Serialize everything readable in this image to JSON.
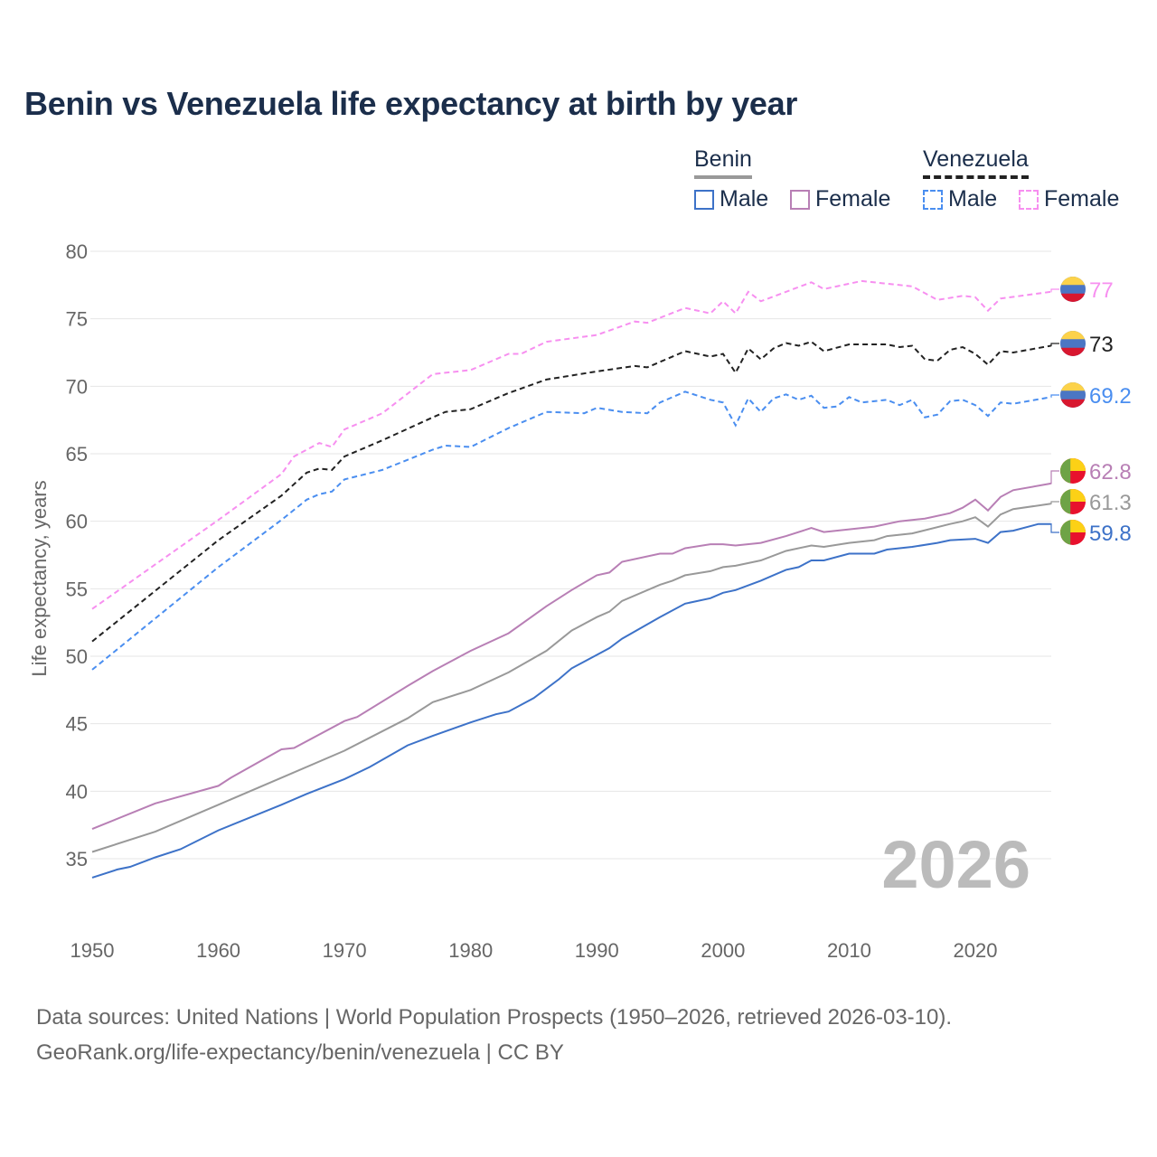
{
  "title": "Benin vs Venezuela life expectancy at birth by year",
  "legend": {
    "groups": [
      {
        "country": "Benin",
        "items": [
          "Male",
          "Female"
        ]
      },
      {
        "country": "Venezuela",
        "items": [
          "Male",
          "Female"
        ]
      }
    ]
  },
  "source": {
    "line1": "Data sources: United Nations | World Population Prospects (1950–2026, retrieved 2026-03-10).",
    "line2": "GeoRank.org/life-expectancy/benin/venezuela | CC BY"
  },
  "chart_data": {
    "type": "line",
    "title": "Benin vs Venezuela life expectancy at birth by year",
    "xlabel": "",
    "ylabel": "Life expectancy, years",
    "xlim": [
      1950,
      2026
    ],
    "ylim": [
      32,
      80
    ],
    "x_ticks": [
      1950,
      1960,
      1970,
      1980,
      1990,
      2000,
      2010,
      2020
    ],
    "y_ticks": [
      35,
      40,
      45,
      50,
      55,
      60,
      65,
      70,
      75,
      80
    ],
    "grid": true,
    "legend_position": "top-right",
    "year_watermark": "2026",
    "series": [
      {
        "name": "Venezuela Female",
        "color": "#f78ff0",
        "dashed": true,
        "end_label": "77",
        "points": [
          [
            1950,
            53.5
          ],
          [
            1960,
            60.1
          ],
          [
            1965,
            63.5
          ],
          [
            1966,
            64.8
          ],
          [
            1968,
            65.8
          ],
          [
            1969,
            65.5
          ],
          [
            1970,
            66.8
          ],
          [
            1973,
            68
          ],
          [
            1977,
            70.9
          ],
          [
            1980,
            71.2
          ],
          [
            1983,
            72.4
          ],
          [
            1984,
            72.4
          ],
          [
            1986,
            73.3
          ],
          [
            1990,
            73.8
          ],
          [
            1993,
            74.8
          ],
          [
            1994,
            74.7
          ],
          [
            1997,
            75.8
          ],
          [
            1999,
            75.4
          ],
          [
            2000,
            76.3
          ],
          [
            2001,
            75.4
          ],
          [
            2002,
            77
          ],
          [
            2003,
            76.3
          ],
          [
            2007,
            77.7
          ],
          [
            2008,
            77.2
          ],
          [
            2011,
            77.8
          ],
          [
            2015,
            77.4
          ],
          [
            2017,
            76.4
          ],
          [
            2019,
            76.7
          ],
          [
            2020,
            76.6
          ],
          [
            2021,
            75.6
          ],
          [
            2022,
            76.5
          ],
          [
            2026,
            77
          ]
        ]
      },
      {
        "name": "Venezuela",
        "color": "#222222",
        "dashed": true,
        "end_label": "73",
        "points": [
          [
            1950,
            51.1
          ],
          [
            1960,
            58.6
          ],
          [
            1965,
            61.9
          ],
          [
            1967,
            63.6
          ],
          [
            1968,
            63.9
          ],
          [
            1969,
            63.8
          ],
          [
            1970,
            64.8
          ],
          [
            1973,
            66
          ],
          [
            1977,
            67.7
          ],
          [
            1978,
            68.1
          ],
          [
            1980,
            68.3
          ],
          [
            1983,
            69.5
          ],
          [
            1986,
            70.5
          ],
          [
            1990,
            71.1
          ],
          [
            1993,
            71.5
          ],
          [
            1994,
            71.4
          ],
          [
            1997,
            72.6
          ],
          [
            1999,
            72.2
          ],
          [
            2000,
            72.4
          ],
          [
            2001,
            71
          ],
          [
            2002,
            72.8
          ],
          [
            2003,
            72
          ],
          [
            2004,
            72.8
          ],
          [
            2005,
            73.2
          ],
          [
            2006,
            73
          ],
          [
            2007,
            73.3
          ],
          [
            2008,
            72.6
          ],
          [
            2010,
            73.1
          ],
          [
            2013,
            73.1
          ],
          [
            2014,
            72.9
          ],
          [
            2015,
            73
          ],
          [
            2016,
            72
          ],
          [
            2017,
            71.9
          ],
          [
            2018,
            72.7
          ],
          [
            2019,
            72.9
          ],
          [
            2020,
            72.4
          ],
          [
            2021,
            71.6
          ],
          [
            2022,
            72.6
          ],
          [
            2023,
            72.5
          ],
          [
            2026,
            73
          ]
        ]
      },
      {
        "name": "Venezuela Male",
        "color": "#4a8ef0",
        "dashed": true,
        "end_label": "69.2",
        "points": [
          [
            1950,
            49
          ],
          [
            1960,
            56.6
          ],
          [
            1965,
            60.1
          ],
          [
            1967,
            61.6
          ],
          [
            1968,
            62
          ],
          [
            1969,
            62.2
          ],
          [
            1970,
            63.1
          ],
          [
            1973,
            63.8
          ],
          [
            1977,
            65.3
          ],
          [
            1978,
            65.6
          ],
          [
            1980,
            65.5
          ],
          [
            1983,
            66.9
          ],
          [
            1986,
            68.1
          ],
          [
            1989,
            68
          ],
          [
            1990,
            68.4
          ],
          [
            1992,
            68.1
          ],
          [
            1994,
            68
          ],
          [
            1995,
            68.8
          ],
          [
            1997,
            69.6
          ],
          [
            1999,
            69
          ],
          [
            2000,
            68.8
          ],
          [
            2001,
            67.1
          ],
          [
            2002,
            69.1
          ],
          [
            2003,
            68.1
          ],
          [
            2004,
            69.1
          ],
          [
            2005,
            69.4
          ],
          [
            2006,
            69
          ],
          [
            2007,
            69.3
          ],
          [
            2008,
            68.4
          ],
          [
            2009,
            68.5
          ],
          [
            2010,
            69.2
          ],
          [
            2011,
            68.8
          ],
          [
            2013,
            69
          ],
          [
            2014,
            68.6
          ],
          [
            2015,
            69
          ],
          [
            2016,
            67.7
          ],
          [
            2017,
            67.9
          ],
          [
            2018,
            68.9
          ],
          [
            2019,
            69
          ],
          [
            2020,
            68.6
          ],
          [
            2021,
            67.8
          ],
          [
            2022,
            68.8
          ],
          [
            2023,
            68.7
          ],
          [
            2026,
            69.2
          ]
        ]
      },
      {
        "name": "Benin Female",
        "color": "#b87fb5",
        "dashed": false,
        "end_label": "62.8",
        "points": [
          [
            1950,
            37.2
          ],
          [
            1955,
            39.1
          ],
          [
            1960,
            40.4
          ],
          [
            1961,
            41
          ],
          [
            1965,
            43.1
          ],
          [
            1966,
            43.2
          ],
          [
            1970,
            45.2
          ],
          [
            1971,
            45.5
          ],
          [
            1975,
            47.8
          ],
          [
            1977,
            48.9
          ],
          [
            1980,
            50.4
          ],
          [
            1983,
            51.7
          ],
          [
            1986,
            53.7
          ],
          [
            1988,
            54.9
          ],
          [
            1990,
            56
          ],
          [
            1991,
            56.2
          ],
          [
            1992,
            57
          ],
          [
            1995,
            57.6
          ],
          [
            1996,
            57.6
          ],
          [
            1997,
            58
          ],
          [
            1999,
            58.3
          ],
          [
            2000,
            58.3
          ],
          [
            2001,
            58.2
          ],
          [
            2003,
            58.4
          ],
          [
            2005,
            58.9
          ],
          [
            2007,
            59.5
          ],
          [
            2008,
            59.2
          ],
          [
            2010,
            59.4
          ],
          [
            2012,
            59.6
          ],
          [
            2014,
            60
          ],
          [
            2016,
            60.2
          ],
          [
            2018,
            60.6
          ],
          [
            2019,
            61
          ],
          [
            2020,
            61.6
          ],
          [
            2021,
            60.8
          ],
          [
            2022,
            61.8
          ],
          [
            2023,
            62.3
          ],
          [
            2026,
            62.8
          ]
        ]
      },
      {
        "name": "Benin",
        "color": "#999999",
        "dashed": false,
        "end_label": "61.3",
        "points": [
          [
            1950,
            35.5
          ],
          [
            1955,
            37
          ],
          [
            1960,
            39
          ],
          [
            1965,
            41
          ],
          [
            1970,
            43
          ],
          [
            1975,
            45.4
          ],
          [
            1977,
            46.6
          ],
          [
            1980,
            47.5
          ],
          [
            1983,
            48.8
          ],
          [
            1986,
            50.4
          ],
          [
            1988,
            51.9
          ],
          [
            1990,
            52.9
          ],
          [
            1991,
            53.3
          ],
          [
            1992,
            54.1
          ],
          [
            1995,
            55.3
          ],
          [
            1996,
            55.6
          ],
          [
            1997,
            56
          ],
          [
            1999,
            56.3
          ],
          [
            2000,
            56.6
          ],
          [
            2001,
            56.7
          ],
          [
            2003,
            57.1
          ],
          [
            2005,
            57.8
          ],
          [
            2007,
            58.2
          ],
          [
            2008,
            58.1
          ],
          [
            2010,
            58.4
          ],
          [
            2012,
            58.6
          ],
          [
            2013,
            58.9
          ],
          [
            2015,
            59.1
          ],
          [
            2018,
            59.8
          ],
          [
            2019,
            60
          ],
          [
            2020,
            60.3
          ],
          [
            2021,
            59.6
          ],
          [
            2022,
            60.5
          ],
          [
            2023,
            60.9
          ],
          [
            2026,
            61.3
          ]
        ]
      },
      {
        "name": "Benin Male",
        "color": "#3d72c8",
        "dashed": false,
        "end_label": "59.8",
        "points": [
          [
            1950,
            33.6
          ],
          [
            1952,
            34.2
          ],
          [
            1953,
            34.4
          ],
          [
            1955,
            35.1
          ],
          [
            1957,
            35.7
          ],
          [
            1960,
            37.1
          ],
          [
            1965,
            39
          ],
          [
            1967,
            39.8
          ],
          [
            1970,
            40.9
          ],
          [
            1972,
            41.8
          ],
          [
            1975,
            43.4
          ],
          [
            1977,
            44.1
          ],
          [
            1980,
            45.1
          ],
          [
            1982,
            45.7
          ],
          [
            1983,
            45.9
          ],
          [
            1985,
            46.9
          ],
          [
            1987,
            48.3
          ],
          [
            1988,
            49.1
          ],
          [
            1990,
            50.1
          ],
          [
            1991,
            50.6
          ],
          [
            1992,
            51.3
          ],
          [
            1995,
            52.9
          ],
          [
            1997,
            53.9
          ],
          [
            1999,
            54.3
          ],
          [
            2000,
            54.7
          ],
          [
            2001,
            54.9
          ],
          [
            2003,
            55.6
          ],
          [
            2005,
            56.4
          ],
          [
            2006,
            56.6
          ],
          [
            2007,
            57.1
          ],
          [
            2008,
            57.1
          ],
          [
            2010,
            57.6
          ],
          [
            2012,
            57.6
          ],
          [
            2013,
            57.9
          ],
          [
            2015,
            58.1
          ],
          [
            2017,
            58.4
          ],
          [
            2018,
            58.6
          ],
          [
            2020,
            58.7
          ],
          [
            2021,
            58.4
          ],
          [
            2022,
            59.2
          ],
          [
            2023,
            59.3
          ],
          [
            2025,
            59.8
          ],
          [
            2026,
            59.8
          ]
        ]
      }
    ]
  }
}
